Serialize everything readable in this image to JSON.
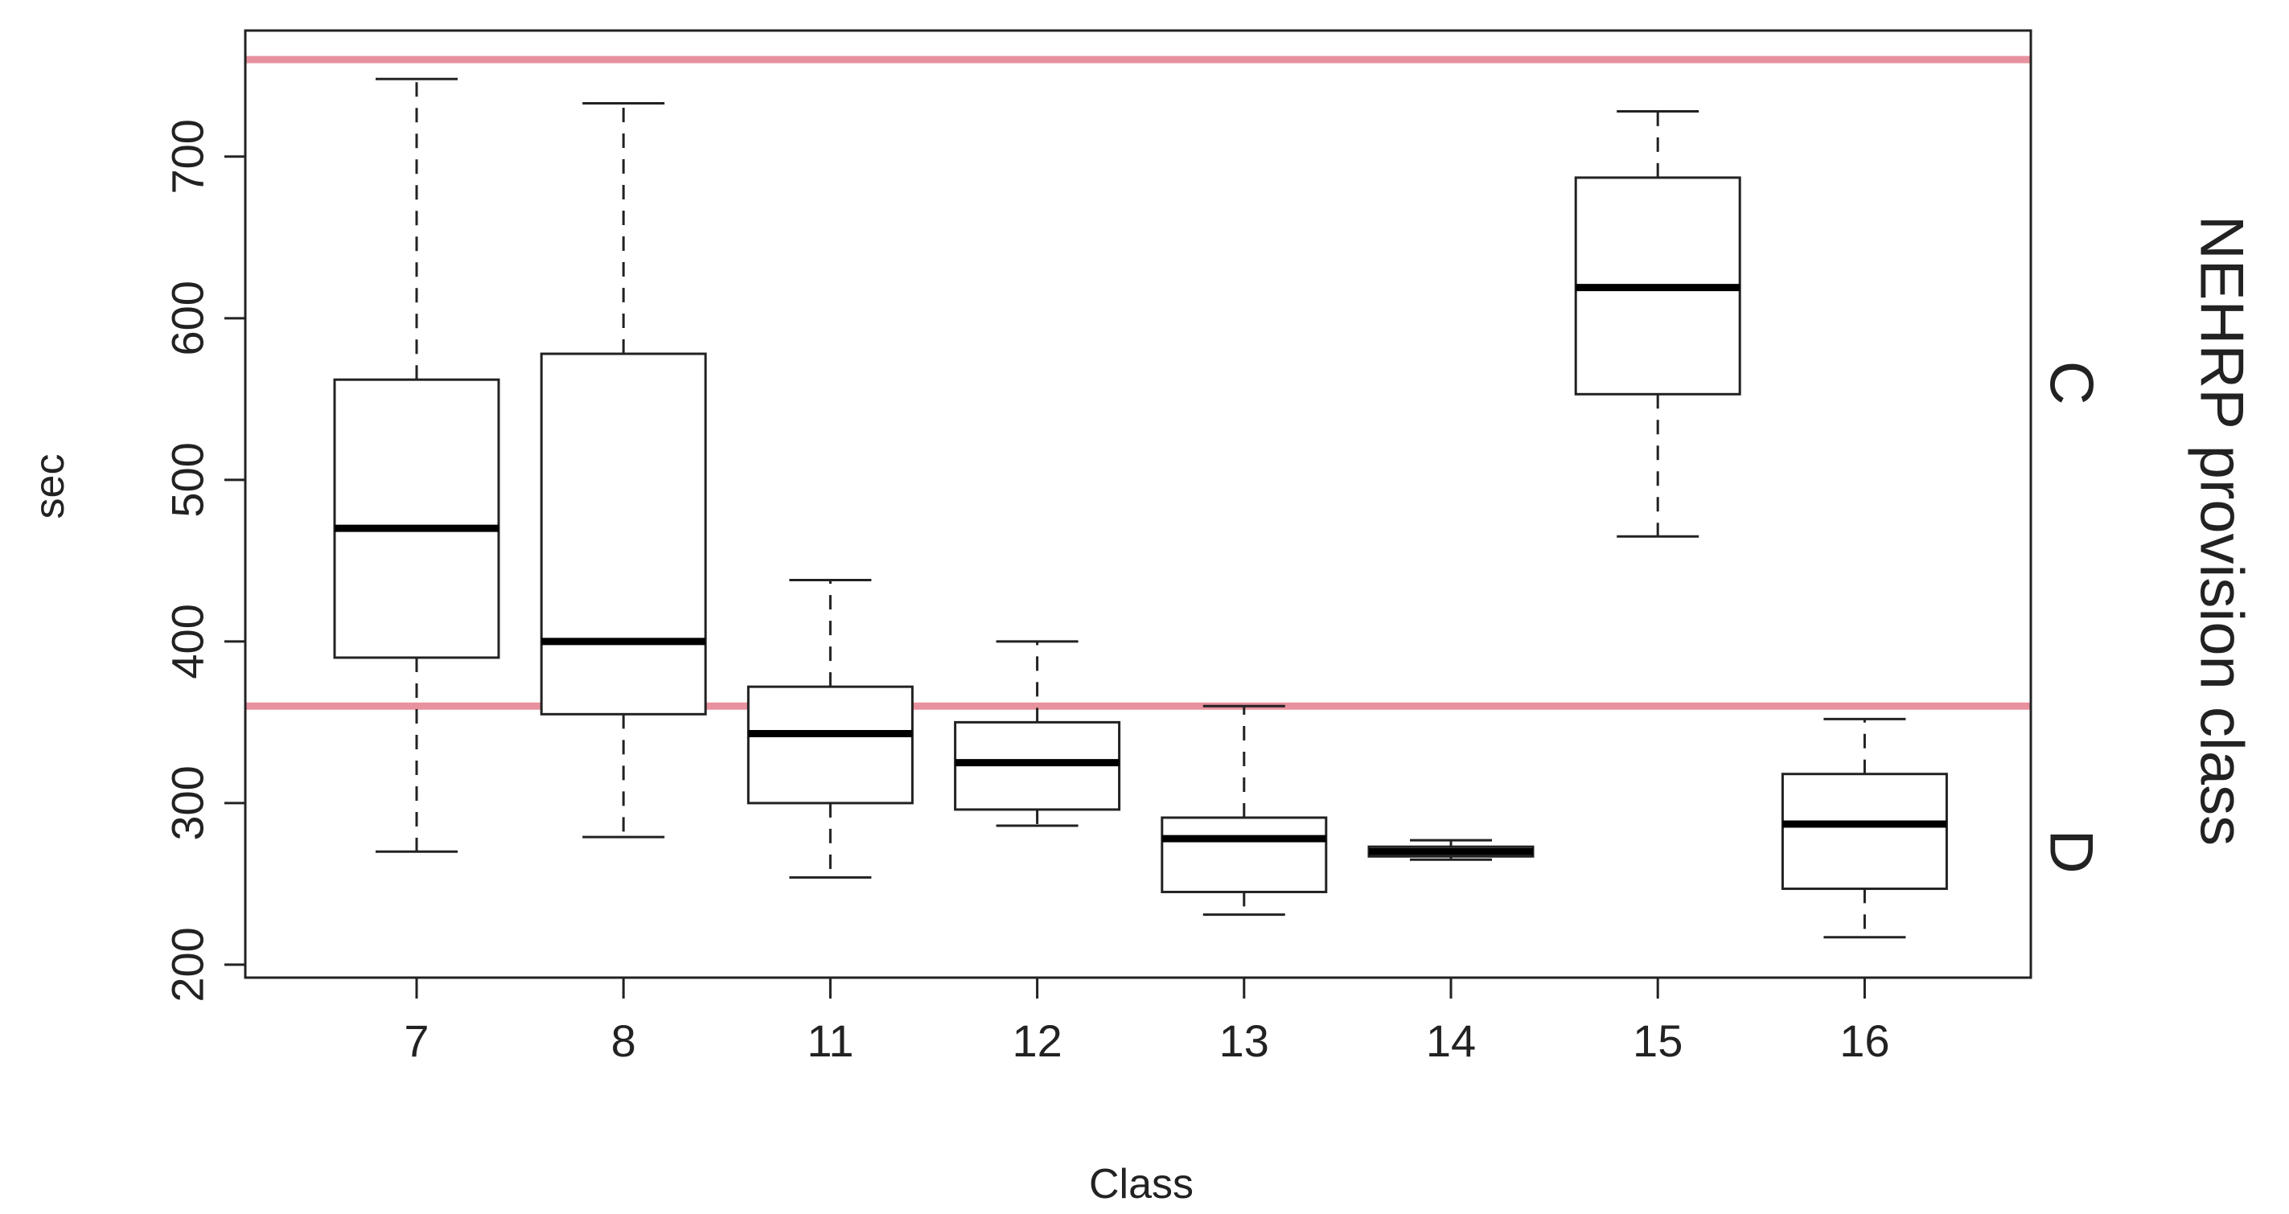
{
  "chart_data": {
    "type": "boxplot",
    "xlabel": "Class",
    "ylabel": "sec",
    "ylim": [
      192,
      778
    ],
    "yticks": [
      200,
      300,
      400,
      500,
      600,
      700
    ],
    "categories": [
      "7",
      "8",
      "11",
      "12",
      "13",
      "14",
      "15",
      "16"
    ],
    "boxes": [
      {
        "category": "7",
        "whisker_low": 270,
        "q1": 390,
        "median": 470,
        "q3": 562,
        "whisker_high": 748
      },
      {
        "category": "8",
        "whisker_low": 279,
        "q1": 355,
        "median": 400,
        "q3": 578,
        "whisker_high": 733
      },
      {
        "category": "11",
        "whisker_low": 254,
        "q1": 300,
        "median": 343,
        "q3": 372,
        "whisker_high": 438
      },
      {
        "category": "12",
        "whisker_low": 286,
        "q1": 296,
        "median": 325,
        "q3": 350,
        "whisker_high": 400
      },
      {
        "category": "13",
        "whisker_low": 231,
        "q1": 245,
        "median": 278,
        "q3": 291,
        "whisker_high": 360
      },
      {
        "category": "14",
        "whisker_low": 265,
        "q1": 267,
        "median": 270,
        "q3": 273,
        "whisker_high": 277
      },
      {
        "category": "15",
        "whisker_low": 465,
        "q1": 553,
        "median": 619,
        "q3": 687,
        "whisker_high": 728
      },
      {
        "category": "16",
        "whisker_low": 217,
        "q1": 247,
        "median": 287,
        "q3": 318,
        "whisker_high": 352
      }
    ],
    "reference_lines": [
      {
        "y": 760,
        "color": "#e8919e"
      },
      {
        "y": 360,
        "color": "#e8919e"
      }
    ],
    "right_axis": {
      "title": "NEHRP provision class",
      "labels": [
        {
          "text": "C",
          "y": 560
        },
        {
          "text": "D",
          "y": 270
        }
      ]
    }
  }
}
